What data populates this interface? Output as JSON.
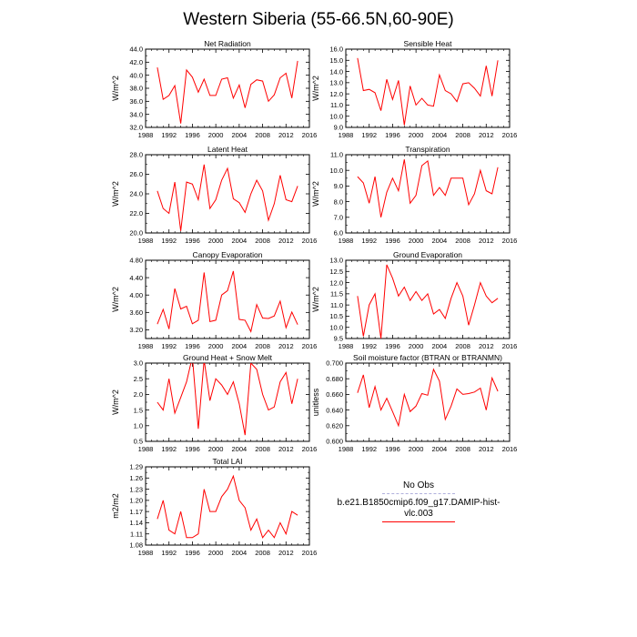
{
  "figure_title": "Western Siberia (55-66.5N,60-90E)",
  "chart_data": [
    {
      "type": "line",
      "title": "Net Radiation",
      "ylabel": "W/m^2",
      "xlim": [
        1988,
        2016
      ],
      "ylim": [
        32.0,
        44.0
      ],
      "xticks": [
        1988,
        1992,
        1996,
        2000,
        2004,
        2008,
        2012,
        2016
      ],
      "xtick_labels": [
        "1988",
        "1992",
        "1996",
        "2000",
        "2004",
        "2008",
        "2012",
        "2016"
      ],
      "yticks": [
        32.0,
        34.0,
        36.0,
        38.0,
        40.0,
        42.0,
        44.0
      ],
      "ytick_labels": [
        "32.0",
        "34.0",
        "36.0",
        "38.0",
        "40.0",
        "42.0",
        "44.0"
      ],
      "color": "#ff0000",
      "x": [
        1990,
        1991,
        1992,
        1993,
        1994,
        1995,
        1996,
        1997,
        1998,
        1999,
        2000,
        2001,
        2002,
        2003,
        2004,
        2005,
        2006,
        2007,
        2008,
        2009,
        2010,
        2011,
        2012,
        2013,
        2014
      ],
      "values": [
        41.2,
        36.3,
        36.9,
        38.4,
        32.6,
        40.8,
        39.7,
        37.4,
        39.4,
        36.9,
        36.9,
        39.4,
        39.6,
        36.5,
        38.5,
        35.0,
        38.6,
        39.3,
        39.1,
        36.0,
        37.0,
        39.6,
        40.3,
        36.5,
        42.2
      ]
    },
    {
      "type": "line",
      "title": "Sensible Heat",
      "ylabel": "W/m^2",
      "xlim": [
        1988,
        2016
      ],
      "ylim": [
        9.0,
        16.0
      ],
      "xticks": [
        1988,
        1992,
        1996,
        2000,
        2004,
        2008,
        2012,
        2016
      ],
      "xtick_labels": [
        "1988",
        "1992",
        "1996",
        "2000",
        "2004",
        "2008",
        "2012",
        "2016"
      ],
      "yticks": [
        9.0,
        10.0,
        11.0,
        12.0,
        13.0,
        14.0,
        15.0,
        16.0
      ],
      "ytick_labels": [
        "9.0",
        "10.0",
        "11.0",
        "12.0",
        "13.0",
        "14.0",
        "15.0",
        "16.0"
      ],
      "color": "#ff0000",
      "x": [
        1990,
        1991,
        1992,
        1993,
        1994,
        1995,
        1996,
        1997,
        1998,
        1999,
        2000,
        2001,
        2002,
        2003,
        2004,
        2005,
        2006,
        2007,
        2008,
        2009,
        2010,
        2011,
        2012,
        2013,
        2014
      ],
      "values": [
        15.2,
        12.3,
        12.4,
        12.1,
        10.5,
        13.3,
        11.5,
        13.2,
        9.2,
        12.7,
        11.0,
        11.6,
        11.0,
        10.9,
        13.7,
        12.3,
        12.0,
        11.3,
        12.9,
        13.0,
        12.5,
        11.8,
        14.5,
        11.8,
        15.0
      ]
    },
    {
      "type": "line",
      "title": "Latent Heat",
      "ylabel": "W/m^2",
      "xlim": [
        1988,
        2016
      ],
      "ylim": [
        20.0,
        28.0
      ],
      "xticks": [
        1988,
        1992,
        1996,
        2000,
        2004,
        2008,
        2012,
        2016
      ],
      "xtick_labels": [
        "1988",
        "1992",
        "1996",
        "2000",
        "2004",
        "2008",
        "2012",
        "2016"
      ],
      "yticks": [
        20.0,
        22.0,
        24.0,
        26.0,
        28.0
      ],
      "ytick_labels": [
        "20.0",
        "22.0",
        "24.0",
        "26.0",
        "28.0"
      ],
      "color": "#ff0000",
      "x": [
        1990,
        1991,
        1992,
        1993,
        1994,
        1995,
        1996,
        1997,
        1998,
        1999,
        2000,
        2001,
        2002,
        2003,
        2004,
        2005,
        2006,
        2007,
        2008,
        2009,
        2010,
        2011,
        2012,
        2013,
        2014
      ],
      "values": [
        24.3,
        22.5,
        22.0,
        25.2,
        20.2,
        25.2,
        25.0,
        23.4,
        27.0,
        22.5,
        23.4,
        25.4,
        26.6,
        23.5,
        23.1,
        22.1,
        24.0,
        25.4,
        24.3,
        21.3,
        23.0,
        25.9,
        23.4,
        23.2,
        24.8
      ]
    },
    {
      "type": "line",
      "title": "Transpiration",
      "ylabel": "W/m^2",
      "xlim": [
        1988,
        2016
      ],
      "ylim": [
        6.0,
        11.0
      ],
      "xticks": [
        1988,
        1992,
        1996,
        2000,
        2004,
        2008,
        2012,
        2016
      ],
      "xtick_labels": [
        "1988",
        "1992",
        "1996",
        "2000",
        "2004",
        "2008",
        "2012",
        "2016"
      ],
      "yticks": [
        6.0,
        7.0,
        8.0,
        9.0,
        10.0,
        11.0
      ],
      "ytick_labels": [
        "6.0",
        "7.0",
        "8.0",
        "9.0",
        "10.0",
        "11.0"
      ],
      "color": "#ff0000",
      "x": [
        1990,
        1991,
        1992,
        1993,
        1994,
        1995,
        1996,
        1997,
        1998,
        1999,
        2000,
        2001,
        2002,
        2003,
        2004,
        2005,
        2006,
        2007,
        2008,
        2009,
        2010,
        2011,
        2012,
        2013,
        2014
      ],
      "values": [
        9.6,
        9.2,
        7.9,
        9.6,
        7.0,
        8.6,
        9.5,
        8.7,
        10.7,
        7.9,
        8.4,
        10.3,
        10.6,
        8.4,
        8.9,
        8.4,
        9.5,
        9.5,
        9.5,
        7.8,
        8.5,
        10.0,
        8.7,
        8.5,
        10.2
      ]
    },
    {
      "type": "line",
      "title": "Canopy Evaporation",
      "ylabel": "W/m^2",
      "xlim": [
        1988,
        2016
      ],
      "ylim": [
        3.0,
        4.8
      ],
      "xticks": [
        1988,
        1992,
        1996,
        2000,
        2004,
        2008,
        2012,
        2016
      ],
      "xtick_labels": [
        "1988",
        "1992",
        "1996",
        "2000",
        "2004",
        "2008",
        "2012",
        "2016"
      ],
      "yticks": [
        3.2,
        3.6,
        4.0,
        4.4,
        4.8
      ],
      "ytick_labels": [
        "3.20",
        "3.60",
        "4.00",
        "4.40",
        "4.80"
      ],
      "color": "#ff0000",
      "x": [
        1990,
        1991,
        1992,
        1993,
        1994,
        1995,
        1996,
        1997,
        1998,
        1999,
        2000,
        2001,
        2002,
        2003,
        2004,
        2005,
        2006,
        2007,
        2008,
        2009,
        2010,
        2011,
        2012,
        2013,
        2014
      ],
      "values": [
        3.33,
        3.67,
        3.22,
        4.15,
        3.68,
        3.74,
        3.34,
        3.42,
        4.52,
        3.39,
        3.42,
        4.0,
        4.1,
        4.55,
        3.44,
        3.42,
        3.16,
        3.78,
        3.47,
        3.46,
        3.52,
        3.86,
        3.25,
        3.61,
        3.32
      ]
    },
    {
      "type": "line",
      "title": "Ground Evaporation",
      "ylabel": "W/m^2",
      "xlim": [
        1988,
        2016
      ],
      "ylim": [
        9.5,
        13.0
      ],
      "xticks": [
        1988,
        1992,
        1996,
        2000,
        2004,
        2008,
        2012,
        2016
      ],
      "xtick_labels": [
        "1988",
        "1992",
        "1996",
        "2000",
        "2004",
        "2008",
        "2012",
        "2016"
      ],
      "yticks": [
        9.5,
        10.0,
        10.5,
        11.0,
        11.5,
        12.0,
        12.5,
        13.0
      ],
      "ytick_labels": [
        "9.5",
        "10.0",
        "10.5",
        "11.0",
        "11.5",
        "12.0",
        "12.5",
        "13.0"
      ],
      "color": "#ff0000",
      "x": [
        1990,
        1991,
        1992,
        1993,
        1994,
        1995,
        1996,
        1997,
        1998,
        1999,
        2000,
        2001,
        2002,
        2003,
        2004,
        2005,
        2006,
        2007,
        2008,
        2009,
        2010,
        2011,
        2012,
        2013,
        2014
      ],
      "values": [
        11.4,
        9.6,
        11.0,
        11.5,
        9.5,
        12.8,
        12.2,
        11.4,
        11.8,
        11.2,
        11.6,
        11.2,
        11.5,
        10.6,
        10.8,
        10.4,
        11.3,
        12.0,
        11.4,
        10.1,
        11.0,
        12.0,
        11.4,
        11.1,
        11.3
      ]
    },
    {
      "type": "line",
      "title": "Ground Heat + Snow Melt",
      "ylabel": "W/m^2",
      "xlim": [
        1988,
        2016
      ],
      "ylim": [
        0.5,
        3.0
      ],
      "xticks": [
        1988,
        1992,
        1996,
        2000,
        2004,
        2008,
        2012,
        2016
      ],
      "xtick_labels": [
        "1988",
        "1992",
        "1996",
        "2000",
        "2004",
        "2008",
        "2012",
        "2016"
      ],
      "yticks": [
        0.5,
        1.0,
        1.5,
        2.0,
        2.5,
        3.0
      ],
      "ytick_labels": [
        "0.5",
        "1.0",
        "1.5",
        "2.0",
        "2.5",
        "3.0"
      ],
      "color": "#ff0000",
      "x": [
        1990,
        1991,
        1992,
        1993,
        1994,
        1995,
        1996,
        1997,
        1998,
        1999,
        2000,
        2001,
        2002,
        2003,
        2004,
        2005,
        2006,
        2007,
        2008,
        2009,
        2010,
        2011,
        2012,
        2013,
        2014
      ],
      "values": [
        1.75,
        1.5,
        2.5,
        1.4,
        1.9,
        2.4,
        3.2,
        0.9,
        3.1,
        1.8,
        2.5,
        2.3,
        2.0,
        2.4,
        1.7,
        0.7,
        3.0,
        2.8,
        2.0,
        1.5,
        1.6,
        2.4,
        2.7,
        1.7,
        2.5
      ]
    },
    {
      "type": "line",
      "title": "Soil moisture factor (BTRAN or BTRANMN)",
      "ylabel": "unitless",
      "xlim": [
        1988,
        2016
      ],
      "ylim": [
        0.6,
        0.7
      ],
      "xticks": [
        1988,
        1992,
        1996,
        2000,
        2004,
        2008,
        2012,
        2016
      ],
      "xtick_labels": [
        "1988",
        "1992",
        "1996",
        "2000",
        "2004",
        "2008",
        "2012",
        "2016"
      ],
      "yticks": [
        0.6,
        0.62,
        0.64,
        0.66,
        0.68,
        0.7
      ],
      "ytick_labels": [
        "0.600",
        "0.620",
        "0.640",
        "0.660",
        "0.680",
        "0.700"
      ],
      "color": "#ff0000",
      "x": [
        1990,
        1991,
        1992,
        1993,
        1994,
        1995,
        1996,
        1997,
        1998,
        1999,
        2000,
        2001,
        2002,
        2003,
        2004,
        2005,
        2006,
        2007,
        2008,
        2009,
        2010,
        2011,
        2012,
        2013,
        2014
      ],
      "values": [
        0.662,
        0.685,
        0.643,
        0.67,
        0.64,
        0.655,
        0.638,
        0.62,
        0.66,
        0.638,
        0.645,
        0.661,
        0.659,
        0.692,
        0.677,
        0.628,
        0.645,
        0.667,
        0.66,
        0.661,
        0.663,
        0.668,
        0.64,
        0.681,
        0.664
      ]
    },
    {
      "type": "line",
      "title": "Total LAI",
      "ylabel": "m2/m2",
      "xlim": [
        1988,
        2016
      ],
      "ylim": [
        1.08,
        1.29
      ],
      "xticks": [
        1988,
        1992,
        1996,
        2000,
        2004,
        2008,
        2012,
        2016
      ],
      "xtick_labels": [
        "1988",
        "1992",
        "1996",
        "2000",
        "2004",
        "2008",
        "2012",
        "2016"
      ],
      "yticks": [
        1.08,
        1.11,
        1.14,
        1.17,
        1.2,
        1.23,
        1.26,
        1.29
      ],
      "ytick_labels": [
        "1.08",
        "1.11",
        "1.14",
        "1.17",
        "1.20",
        "1.23",
        "1.26",
        "1.29"
      ],
      "color": "#ff0000",
      "x": [
        1990,
        1991,
        1992,
        1993,
        1994,
        1995,
        1996,
        1997,
        1998,
        1999,
        2000,
        2001,
        2002,
        2003,
        2004,
        2005,
        2006,
        2007,
        2008,
        2009,
        2010,
        2011,
        2012,
        2013,
        2014
      ],
      "values": [
        1.15,
        1.2,
        1.12,
        1.11,
        1.17,
        1.1,
        1.1,
        1.11,
        1.23,
        1.17,
        1.17,
        1.21,
        1.23,
        1.265,
        1.2,
        1.18,
        1.12,
        1.15,
        1.1,
        1.12,
        1.1,
        1.14,
        1.11,
        1.17,
        1.16
      ]
    }
  ],
  "legend": {
    "entries": [
      {
        "label": "No Obs",
        "color": "#b0b0dc",
        "style": "dashed"
      },
      {
        "label": "b.e21.B1850cmip6.f09_g17.DAMIP-hist-vlc.003",
        "color": "#ff0000",
        "style": "solid"
      }
    ]
  }
}
